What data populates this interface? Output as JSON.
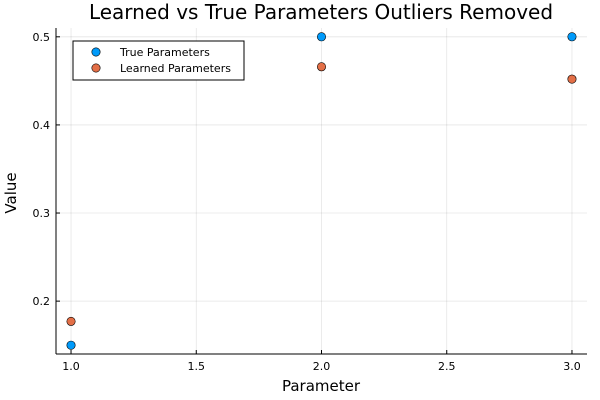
{
  "chart_data": {
    "type": "scatter",
    "title": "Learned vs True Parameters Outliers Removed",
    "xlabel": "Parameter",
    "ylabel": "Value",
    "xlim": [
      0.94,
      3.06
    ],
    "ylim": [
      0.14,
      0.51
    ],
    "xticks": [
      1.0,
      1.5,
      2.0,
      2.5,
      3.0
    ],
    "xtick_labels": [
      "1.0",
      "1.5",
      "2.0",
      "2.5",
      "3.0"
    ],
    "yticks": [
      0.2,
      0.3,
      0.4,
      0.5
    ],
    "ytick_labels": [
      "0.2",
      "0.3",
      "0.4",
      "0.5"
    ],
    "grid": true,
    "legend_position": "top-left",
    "series": [
      {
        "name": "True Parameters",
        "color": "#009AFA",
        "x": [
          1,
          2,
          3
        ],
        "y": [
          0.15,
          0.5,
          0.5
        ]
      },
      {
        "name": "Learned Parameters",
        "color": "#E36F47",
        "x": [
          1,
          2,
          3
        ],
        "y": [
          0.177,
          0.466,
          0.452
        ]
      }
    ]
  }
}
